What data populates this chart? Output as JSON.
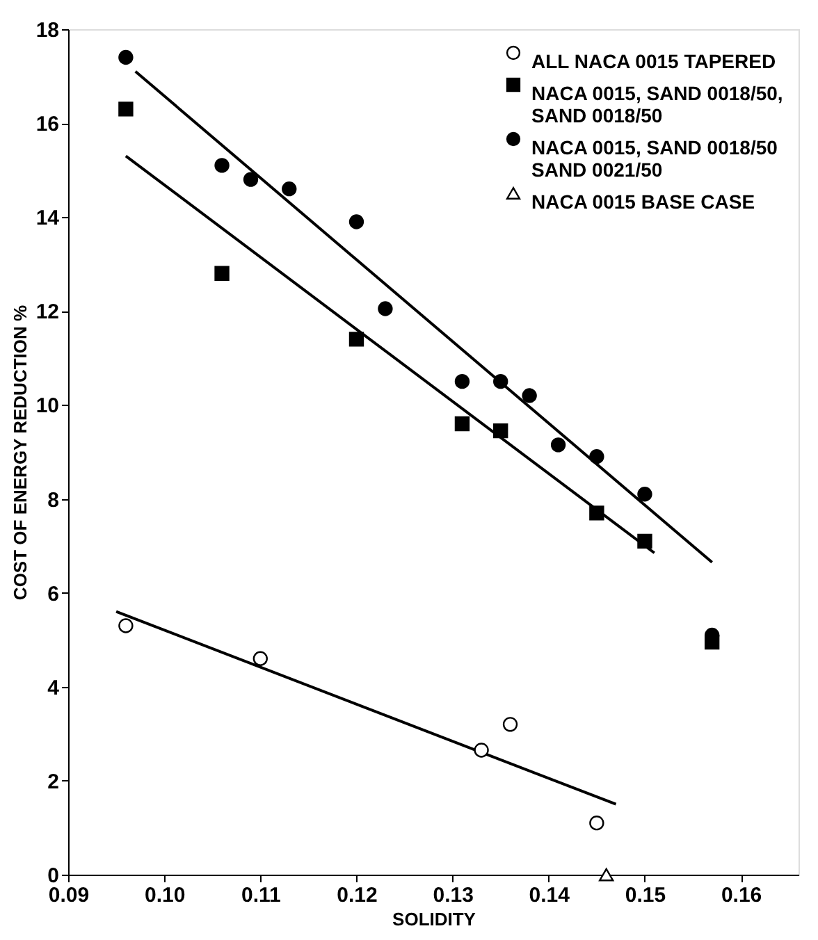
{
  "chart_data": {
    "type": "scatter",
    "xlabel": "SOLIDITY",
    "ylabel": "COST OF ENERGY REDUCTION %",
    "xlim": [
      0.09,
      0.166
    ],
    "ylim": [
      0,
      18
    ],
    "xticks": [
      0.09,
      {
        "value": 0.1,
        "label": "0.10"
      },
      0.11,
      0.12,
      0.13,
      0.14,
      0.15,
      {
        "value": 0.16,
        "label": "0.16"
      }
    ],
    "yticks": [
      0,
      2,
      4,
      6,
      8,
      10,
      12,
      14,
      16,
      18
    ],
    "grid": false,
    "legend": "top right",
    "series": [
      {
        "name": "ALL NACA 0015 TAPERED",
        "marker": "circle",
        "color": "#ffffff",
        "x": [
          0.096,
          0.11,
          0.133,
          0.136,
          0.145
        ],
        "values": [
          5.3,
          4.6,
          2.65,
          3.2,
          1.1
        ]
      },
      {
        "name": "NACA 0015, SAND 0018/50, SAND 0018/50",
        "marker": "square",
        "color": "#000000",
        "x": [
          0.096,
          0.106,
          0.12,
          0.131,
          0.135,
          0.145,
          0.15,
          0.157
        ],
        "values": [
          16.3,
          12.8,
          11.4,
          9.6,
          9.45,
          7.7,
          7.1,
          4.95
        ]
      },
      {
        "name": "NACA 0015, SAND 0018/50 SAND 0021/50",
        "marker": "circle",
        "color": "#000000",
        "x": [
          0.096,
          0.106,
          0.109,
          0.113,
          0.12,
          0.123,
          0.131,
          0.135,
          0.138,
          0.141,
          0.145,
          0.15,
          0.157
        ],
        "values": [
          17.4,
          15.1,
          14.8,
          14.6,
          13.9,
          12.05,
          10.5,
          10.5,
          10.2,
          9.15,
          8.9,
          8.1,
          5.1
        ]
      },
      {
        "name": "NACA 0015 BASE CASE",
        "marker": "triangle",
        "color": "#ffffff",
        "x": [
          0.146
        ],
        "values": [
          0
        ]
      },
      {
        "type": "line",
        "line_style": "solid",
        "color": "#000000",
        "x": [
          0.097,
          0.157
        ],
        "values": [
          17.1,
          6.65
        ]
      },
      {
        "type": "line",
        "line_style": "solid",
        "color": "#000000",
        "x": [
          0.096,
          0.151
        ],
        "values": [
          15.3,
          6.85
        ]
      },
      {
        "type": "line",
        "line_style": "solid",
        "color": "#000000",
        "x": [
          0.095,
          0.147
        ],
        "values": [
          5.6,
          1.5
        ]
      }
    ]
  }
}
